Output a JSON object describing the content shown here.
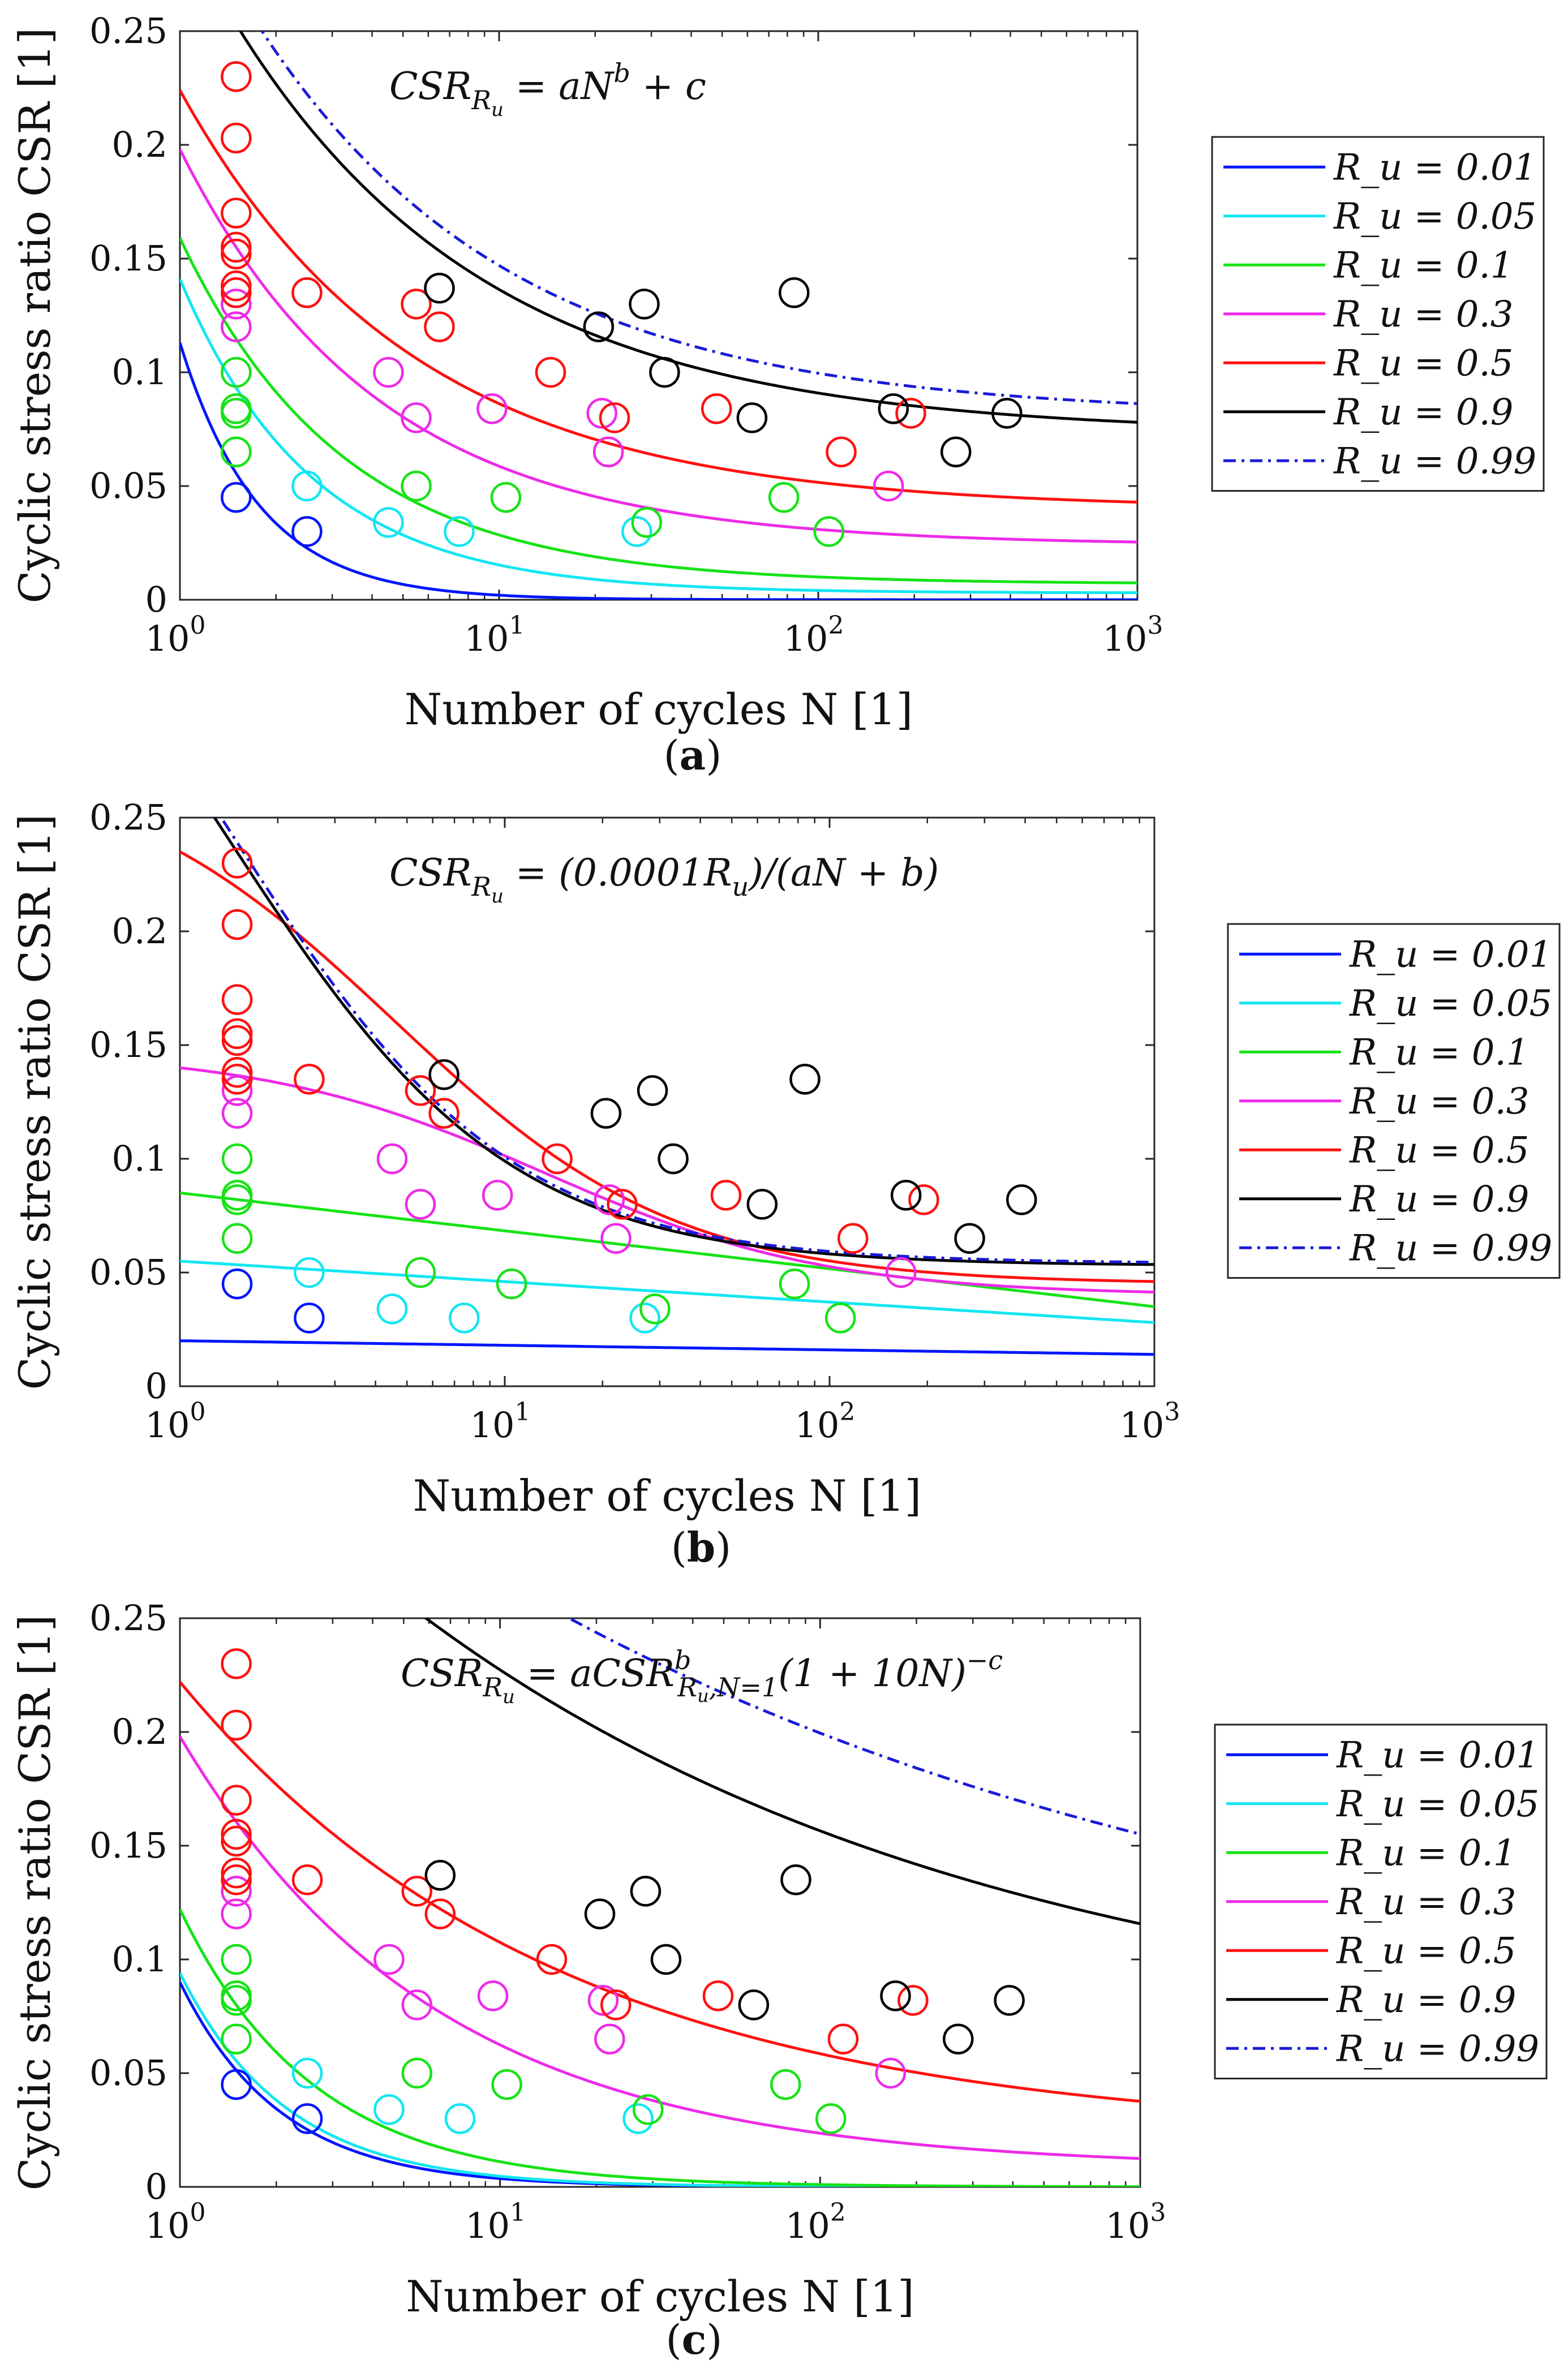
{
  "caption_letters": [
    "a",
    "b",
    "c"
  ],
  "colors": {
    "0.01": "#0015ff",
    "0.05": "#13e6f2",
    "0.1": "#16e316",
    "0.3": "#ee2ae8",
    "0.5": "#ff1010",
    "0.9": "#000000",
    "0.99": "#1a1ad8"
  },
  "shared": {
    "ylabel": "Cyclic stress ratio CSR [1]",
    "xlabel": "Number of cycles N [1]",
    "xticks": [
      "10",
      "10",
      "10",
      "10"
    ],
    "xtick_exponents": [
      "0",
      "1",
      "2",
      "3"
    ],
    "yticks": [
      "0",
      "0.05",
      "0.1",
      "0.15",
      "0.2",
      "0.25"
    ],
    "legend_labels": [
      "R_u = 0.01",
      "R_u = 0.05",
      "R_u = 0.1",
      "R_u = 0.3",
      "R_u = 0.5",
      "R_u = 0.9",
      "R_u = 0.99"
    ],
    "scatter": [
      {
        "ru": "0.01",
        "points": [
          [
            1.5,
            0.045
          ],
          [
            2.5,
            0.03
          ]
        ]
      },
      {
        "ru": "0.05",
        "points": [
          [
            2.5,
            0.05
          ],
          [
            4.5,
            0.034
          ],
          [
            7.5,
            0.03
          ],
          [
            27,
            0.03
          ]
        ]
      },
      {
        "ru": "0.1",
        "points": [
          [
            1.5,
            0.065
          ],
          [
            1.5,
            0.082
          ],
          [
            1.5,
            0.084
          ],
          [
            1.5,
            0.1
          ],
          [
            5.5,
            0.05
          ],
          [
            10.5,
            0.045
          ],
          [
            29,
            0.034
          ],
          [
            78,
            0.045
          ],
          [
            108,
            0.03
          ]
        ]
      },
      {
        "ru": "0.3",
        "points": [
          [
            1.5,
            0.12
          ],
          [
            1.5,
            0.13
          ],
          [
            4.5,
            0.1
          ],
          [
            5.5,
            0.08
          ],
          [
            9.5,
            0.084
          ],
          [
            22,
            0.065
          ],
          [
            21,
            0.082
          ],
          [
            166,
            0.05
          ]
        ]
      },
      {
        "ru": "0.5",
        "points": [
          [
            1.5,
            0.135
          ],
          [
            1.5,
            0.138
          ],
          [
            1.5,
            0.152
          ],
          [
            1.5,
            0.155
          ],
          [
            1.5,
            0.17
          ],
          [
            1.5,
            0.203
          ],
          [
            1.5,
            0.23
          ],
          [
            2.5,
            0.135
          ],
          [
            5.5,
            0.13
          ],
          [
            6.5,
            0.12
          ],
          [
            14.5,
            0.1
          ],
          [
            23,
            0.08
          ],
          [
            48,
            0.084
          ],
          [
            118,
            0.065
          ],
          [
            195,
            0.082
          ]
        ]
      },
      {
        "ru": "0.9",
        "points": [
          [
            6.5,
            0.137
          ],
          [
            20.5,
            0.12
          ],
          [
            28.5,
            0.13
          ],
          [
            33,
            0.1
          ],
          [
            62,
            0.08
          ],
          [
            84,
            0.135
          ],
          [
            172,
            0.084
          ],
          [
            270,
            0.065
          ],
          [
            390,
            0.082
          ]
        ]
      }
    ]
  },
  "chart_data": [
    {
      "type": "line",
      "panel": "a",
      "title": "CSR_{R_u} = aN^b + c",
      "formula": {
        "lhs": "CSR",
        "sub": "R",
        "subsub": "u",
        "rhs": " = aN",
        "sup": "b",
        "tail": " + c"
      },
      "xlabel": "Number of cycles N [1]",
      "ylabel": "Cyclic stress ratio CSR [1]",
      "xscale": "log",
      "xlim": [
        1,
        1000
      ],
      "ylim": [
        0,
        0.25
      ],
      "legend_position": "outside right, upper",
      "series": [
        {
          "name": "R_u = 0.01",
          "ru": "0.01",
          "style": "solid",
          "model": "power",
          "a": 0.113,
          "b": -1.75,
          "c": 0.0
        },
        {
          "name": "R_u = 0.05",
          "ru": "0.05",
          "style": "solid",
          "model": "power",
          "a": 0.138,
          "b": -1.05,
          "c": 0.003
        },
        {
          "name": "R_u = 0.1",
          "ru": "0.1",
          "style": "solid",
          "model": "power",
          "a": 0.152,
          "b": -0.85,
          "c": 0.007
        },
        {
          "name": "R_u = 0.3",
          "ru": "0.3",
          "style": "solid",
          "model": "power",
          "a": 0.174,
          "b": -0.7,
          "c": 0.024
        },
        {
          "name": "R_u = 0.5",
          "ru": "0.5",
          "style": "solid",
          "model": "power",
          "a": 0.184,
          "b": -0.6,
          "c": 0.04
        },
        {
          "name": "R_u = 0.9",
          "ru": "0.9",
          "style": "solid",
          "model": "power",
          "a": 0.225,
          "b": -0.55,
          "c": 0.073
        },
        {
          "name": "R_u = 0.99",
          "ru": "0.99",
          "style": "dashdot",
          "model": "power",
          "a": 0.234,
          "b": -0.55,
          "c": 0.081
        }
      ]
    },
    {
      "type": "line",
      "panel": "b",
      "title": "CSR_{R_u} = (0.0001R_u)/(aN + b)",
      "formula": {
        "lhs": "CSR",
        "sub": "R",
        "subsub": "u",
        "rhs": " = (0.0001R",
        "sub2": "u",
        "tail": ")/(aN + b)"
      },
      "xlabel": "Number of cycles N [1]",
      "ylabel": "Cyclic stress ratio CSR [1]",
      "xscale": "log",
      "xlim": [
        1,
        1000
      ],
      "ylim": [
        0,
        0.25
      ],
      "legend_position": "outside right, middle",
      "series": [
        {
          "name": "R_u = 0.01",
          "ru": "0.01",
          "style": "solid",
          "model": "loglinear",
          "v0": 0.02,
          "v3": 0.014
        },
        {
          "name": "R_u = 0.05",
          "ru": "0.05",
          "style": "solid",
          "model": "loglinear",
          "v0": 0.055,
          "v3": 0.028
        },
        {
          "name": "R_u = 0.1",
          "ru": "0.1",
          "style": "solid",
          "model": "loglinear",
          "v0": 0.085,
          "v3": 0.035
        },
        {
          "name": "R_u = 0.3",
          "ru": "0.3",
          "style": "solid",
          "model": "hyper",
          "a": 0.1,
          "b": 0.07,
          "c": 0.04
        },
        {
          "name": "R_u = 0.5",
          "ru": "0.5",
          "style": "solid",
          "model": "hyper",
          "a": 0.19,
          "b": 0.18,
          "c": 0.045
        },
        {
          "name": "R_u = 0.9",
          "ru": "0.9",
          "style": "solid",
          "model": "hyper",
          "a": 0.22,
          "b": 0.42,
          "c": 0.053
        },
        {
          "name": "R_u = 0.99",
          "ru": "0.99",
          "style": "dashdot",
          "model": "hyper",
          "a": 0.224,
          "b": 0.42,
          "c": 0.054
        }
      ]
    },
    {
      "type": "line",
      "panel": "c",
      "title": "CSR_{R_u} = aCSR^b_{R_u,N=1}(1 + 10N)^{-c}",
      "formula": {
        "lhs": "CSR",
        "sub": "R",
        "subsub": "u",
        "rhs": " = aCSR",
        "sup": "b",
        "sub3": "R",
        "subsub3": "u",
        "sub3b": ",N=1",
        "tail": "(1 + 10N)",
        "sup2": "−c"
      },
      "xlabel": "Number of cycles N [1]",
      "ylabel": "Cyclic stress ratio CSR [1]",
      "xscale": "log",
      "xlim": [
        1,
        1000
      ],
      "ylim": [
        0,
        0.25
      ],
      "legend_position": "outside right, middle",
      "series": [
        {
          "name": "R_u = 0.01",
          "ru": "0.01",
          "style": "solid",
          "model": "exp",
          "a": 0.09,
          "k": 3.2,
          "c": 0.0
        },
        {
          "name": "R_u = 0.05",
          "ru": "0.05",
          "style": "solid",
          "model": "exp",
          "a": 0.094,
          "k": 3.0,
          "c": 0.0
        },
        {
          "name": "R_u = 0.1",
          "ru": "0.1",
          "style": "solid",
          "model": "exp",
          "a": 0.122,
          "k": 2.4,
          "c": 0.0
        },
        {
          "name": "R_u = 0.3",
          "ru": "0.3",
          "style": "solid",
          "model": "exp",
          "a": 0.19,
          "k": 1.25,
          "c": 0.008
        },
        {
          "name": "R_u = 0.5",
          "ru": "0.5",
          "style": "solid",
          "model": "exp",
          "a": 0.2,
          "k": 0.85,
          "c": 0.022
        },
        {
          "name": "R_u = 0.9",
          "ru": "0.9",
          "style": "solid",
          "model": "exp",
          "a": 0.29,
          "k": 0.55,
          "c": 0.06
        },
        {
          "name": "R_u = 0.99",
          "ru": "0.99",
          "style": "dashdot",
          "model": "exp",
          "a": 0.3,
          "k": 0.42,
          "c": 0.07
        }
      ]
    }
  ]
}
